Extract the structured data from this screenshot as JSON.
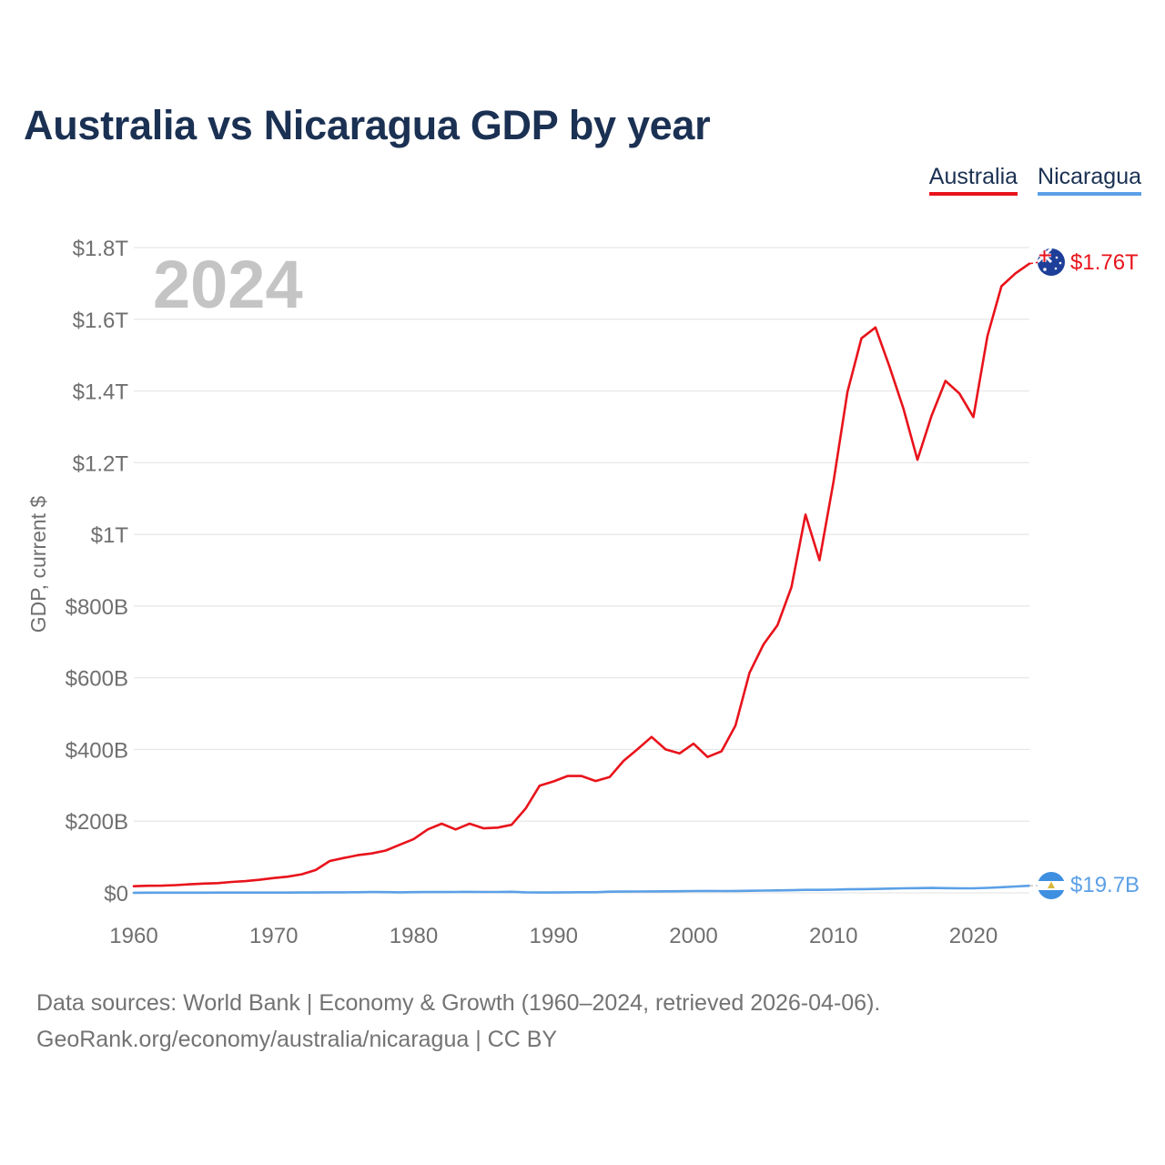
{
  "header": {
    "title": "Australia vs Nicaragua GDP by year"
  },
  "legend": [
    {
      "label": "Australia",
      "color": "#e8131b"
    },
    {
      "label": "Nicaragua",
      "color": "#5ba0e6"
    }
  ],
  "footer": {
    "source_line": "Data sources: World Bank | Economy & Growth (1960–2024, retrieved 2026-04-06).",
    "credit_line": "GeoRank.org/economy/australia/nicaragua | CC BY"
  },
  "chart_data": {
    "type": "line",
    "title": "Australia vs Nicaragua GDP by year",
    "year_label": "2024",
    "xlabel": "",
    "ylabel": "GDP, current $",
    "xlim": [
      1960,
      2024
    ],
    "ylim": [
      0,
      1800
    ],
    "y_unit": "billions of current US$",
    "x_ticks": [
      1960,
      1970,
      1980,
      1990,
      2000,
      2010,
      2020
    ],
    "y_ticks": [
      {
        "value": 0,
        "label": "$0"
      },
      {
        "value": 200,
        "label": "$200B"
      },
      {
        "value": 400,
        "label": "$400B"
      },
      {
        "value": 600,
        "label": "$600B"
      },
      {
        "value": 800,
        "label": "$800B"
      },
      {
        "value": 1000,
        "label": "$1T"
      },
      {
        "value": 1200,
        "label": "$1.2T"
      },
      {
        "value": 1400,
        "label": "$1.4T"
      },
      {
        "value": 1600,
        "label": "$1.6T"
      },
      {
        "value": 1800,
        "label": "$1.8T"
      }
    ],
    "grid": true,
    "legend_position": "top-right",
    "series": [
      {
        "name": "Australia",
        "color": "#e8131b",
        "end_label": "$1.76T",
        "flag": "flag-australia",
        "x": [
          1960,
          1961,
          1962,
          1963,
          1964,
          1965,
          1966,
          1967,
          1968,
          1969,
          1970,
          1971,
          1972,
          1973,
          1974,
          1975,
          1976,
          1977,
          1978,
          1979,
          1980,
          1981,
          1982,
          1983,
          1984,
          1985,
          1986,
          1987,
          1988,
          1989,
          1990,
          1991,
          1992,
          1993,
          1994,
          1995,
          1996,
          1997,
          1998,
          1999,
          2000,
          2001,
          2002,
          2003,
          2004,
          2005,
          2006,
          2007,
          2008,
          2009,
          2010,
          2011,
          2012,
          2013,
          2014,
          2015,
          2016,
          2017,
          2018,
          2019,
          2020,
          2021,
          2022,
          2023,
          2024
        ],
        "values": [
          18.6,
          19.7,
          20.0,
          21.5,
          23.8,
          25.9,
          27.2,
          30.4,
          32.7,
          36.6,
          41.3,
          45.2,
          51.9,
          63.7,
          88.8,
          97.2,
          105,
          110,
          118,
          134,
          150,
          177,
          193,
          177,
          193,
          180,
          182,
          190,
          235,
          299,
          311,
          326,
          326,
          312,
          323,
          368,
          401,
          435,
          400,
          389,
          416,
          379,
          395,
          467,
          614,
          693,
          747,
          853,
          1055,
          928,
          1147,
          1397,
          1547,
          1577,
          1468,
          1351,
          1208,
          1330,
          1428,
          1393,
          1327,
          1553,
          1692,
          1728,
          1755
        ]
      },
      {
        "name": "Nicaragua",
        "color": "#5ba0e6",
        "end_label": "$19.7B",
        "flag": "flag-nicaragua",
        "x": [
          1960,
          1961,
          1962,
          1963,
          1964,
          1965,
          1966,
          1967,
          1968,
          1969,
          1970,
          1971,
          1972,
          1973,
          1974,
          1975,
          1976,
          1977,
          1978,
          1979,
          1980,
          1981,
          1982,
          1983,
          1984,
          1985,
          1986,
          1987,
          1988,
          1989,
          1990,
          1991,
          1992,
          1993,
          1994,
          1995,
          1996,
          1997,
          1998,
          1999,
          2000,
          2001,
          2002,
          2003,
          2004,
          2005,
          2006,
          2007,
          2008,
          2009,
          2010,
          2011,
          2012,
          2013,
          2014,
          2015,
          2016,
          2017,
          2018,
          2019,
          2020,
          2021,
          2022,
          2023,
          2024
        ],
        "values": [
          0.38,
          0.4,
          0.44,
          0.49,
          0.56,
          0.6,
          0.65,
          0.7,
          0.74,
          0.78,
          0.78,
          0.82,
          0.9,
          1.1,
          1.5,
          1.6,
          1.8,
          2.2,
          2.1,
          1.5,
          2.1,
          2.3,
          2.4,
          2.6,
          2.7,
          2.6,
          2.6,
          3.0,
          1.4,
          1.1,
          1.0,
          1.5,
          1.8,
          1.8,
          3.3,
          3.6,
          3.9,
          4.0,
          4.4,
          4.6,
          5.1,
          5.3,
          5.2,
          5.3,
          5.8,
          6.3,
          6.8,
          7.4,
          8.5,
          8.4,
          8.8,
          9.8,
          10.5,
          10.9,
          11.9,
          12.8,
          13.3,
          13.8,
          13.1,
          12.6,
          12.6,
          14.0,
          15.7,
          17.8,
          19.7
        ]
      }
    ]
  }
}
